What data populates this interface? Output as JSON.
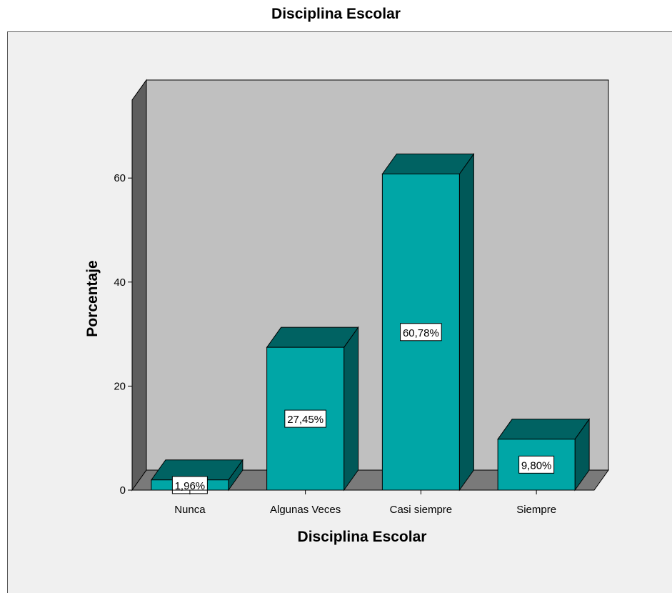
{
  "chart_data": {
    "type": "bar",
    "title": "Disciplina Escolar",
    "xlabel": "Disciplina Escolar",
    "ylabel": "Porcentaje",
    "categories": [
      "Nunca",
      "Algunas Veces",
      "Casi siempre",
      "Siempre"
    ],
    "values": [
      1.96,
      27.45,
      60.78,
      9.8
    ],
    "data_labels": [
      "1,96%",
      "27,45%",
      "60,78%",
      "9,80%"
    ],
    "yticks": [
      0,
      20,
      40,
      60
    ],
    "ylim": [
      0,
      75
    ],
    "three_d": true,
    "grid": false,
    "colors": {
      "bar_front": "#00a6a6",
      "bar_top": "#006262",
      "bar_side": "#005858",
      "back_wall": "#c0c0c0",
      "floor": "#7a7a7a",
      "side_wall": "#5e5e5e",
      "frame_background": "#f0f0f0"
    }
  }
}
